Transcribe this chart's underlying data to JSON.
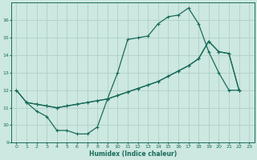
{
  "xlabel": "Humidex (Indice chaleur)",
  "bg_color": "#cce8e0",
  "grid_color": "#b0d0c8",
  "line_color": "#1a6b5a",
  "xlim": [
    -0.5,
    23.5
  ],
  "ylim": [
    9,
    17
  ],
  "yticks": [
    9,
    10,
    11,
    12,
    13,
    14,
    15,
    16
  ],
  "xticks": [
    0,
    1,
    2,
    3,
    4,
    5,
    6,
    7,
    8,
    9,
    10,
    11,
    12,
    13,
    14,
    15,
    16,
    17,
    18,
    19,
    20,
    21,
    22,
    23
  ],
  "line1_x": [
    0,
    1,
    2,
    3,
    4,
    5,
    6,
    7,
    8,
    9,
    10,
    11,
    12,
    13,
    14,
    15,
    16,
    17,
    18,
    19,
    20,
    21,
    22
  ],
  "line1_y": [
    12.0,
    11.3,
    10.8,
    10.5,
    9.7,
    9.7,
    9.5,
    9.5,
    9.9,
    11.5,
    13.0,
    14.9,
    15.0,
    15.1,
    15.8,
    16.2,
    16.3,
    16.7,
    15.8,
    14.2,
    13.0,
    12.0,
    12.0
  ],
  "line2_x": [
    0,
    1,
    2,
    3,
    4,
    5,
    6,
    7,
    8,
    9,
    10,
    11,
    12,
    13,
    14,
    15,
    16,
    17,
    18,
    19,
    20,
    21,
    22
  ],
  "line2_y": [
    12.0,
    11.3,
    11.2,
    11.1,
    11.0,
    11.1,
    11.2,
    11.3,
    11.4,
    11.5,
    11.7,
    11.9,
    12.1,
    12.3,
    12.5,
    12.8,
    13.1,
    13.4,
    13.8,
    14.8,
    14.2,
    14.1,
    12.0
  ],
  "line3_x": [
    1,
    2,
    3,
    4,
    5,
    6,
    7,
    8,
    9,
    10,
    11,
    12,
    13,
    14,
    15,
    16,
    17,
    18,
    19,
    20,
    21,
    22
  ],
  "line3_y": [
    11.3,
    11.2,
    11.1,
    11.0,
    11.1,
    11.2,
    11.3,
    11.4,
    11.5,
    11.7,
    11.9,
    12.1,
    12.3,
    12.5,
    12.8,
    13.1,
    13.4,
    13.8,
    14.8,
    14.2,
    14.1,
    12.0
  ]
}
